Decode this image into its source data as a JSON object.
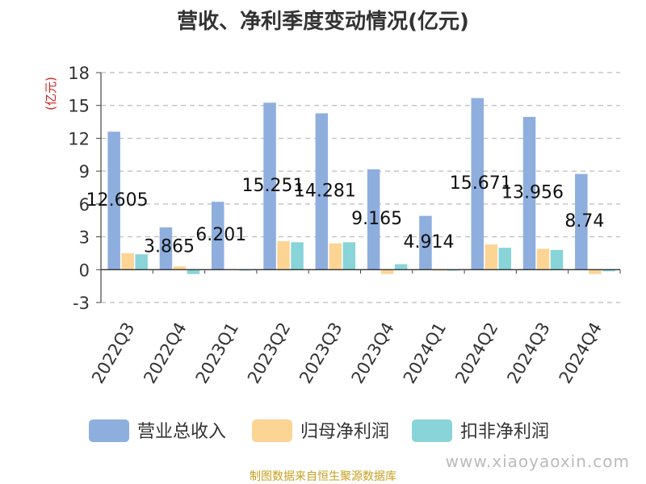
{
  "chart_data": {
    "type": "bar",
    "title": "营收、净利季度变动情况(亿元)",
    "ylabel": "(亿元)",
    "ylim": [
      -3,
      18
    ],
    "yticks": [
      -3,
      0,
      3,
      6,
      9,
      12,
      15,
      18
    ],
    "grid": true,
    "legend_position": "bottom",
    "categories": [
      "2022Q3",
      "2022Q4",
      "2023Q1",
      "2023Q2",
      "2023Q3",
      "2023Q4",
      "2024Q1",
      "2024Q2",
      "2024Q3",
      "2024Q4"
    ],
    "series": [
      {
        "name": "营业总收入",
        "color": "#8eaede",
        "values": [
          12.605,
          3.865,
          6.201,
          15.251,
          14.281,
          9.165,
          4.914,
          15.671,
          13.956,
          8.74
        ]
      },
      {
        "name": "归母净利润",
        "color": "#fcd494",
        "values": [
          1.5,
          0.3,
          0.05,
          2.6,
          2.4,
          -0.4,
          -0.1,
          2.3,
          1.9,
          -0.4
        ]
      },
      {
        "name": "扣非净利润",
        "color": "#88d4d8",
        "values": [
          1.4,
          -0.4,
          -0.05,
          2.5,
          2.5,
          0.5,
          -0.1,
          2.0,
          1.8,
          -0.15
        ]
      }
    ],
    "data_labels": [
      "12.605",
      "3.865",
      "6.201",
      "15.251",
      "14.281",
      "9.165",
      "4.914",
      "15.671",
      "13.956",
      "8.74"
    ]
  },
  "footer": {
    "source": "制图数据来自恒生聚源数据库",
    "watermark": "www.xiaoyaoxin.com"
  }
}
